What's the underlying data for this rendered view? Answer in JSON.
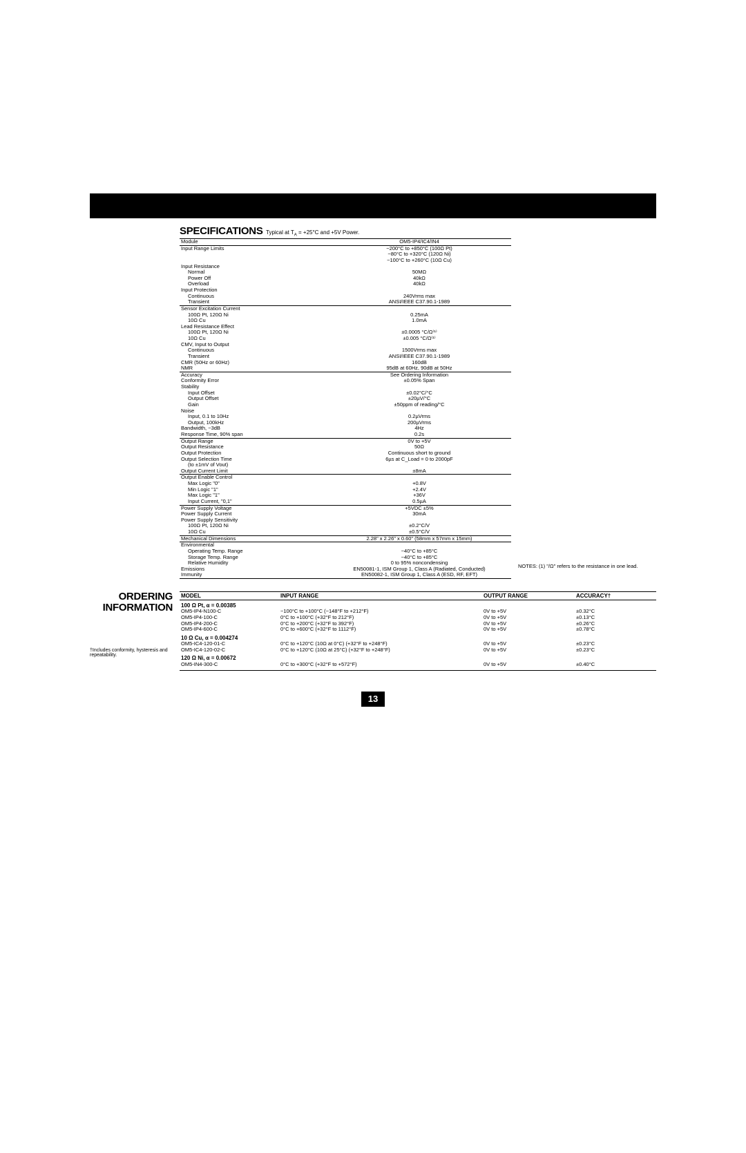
{
  "header": {
    "specifications_label": "SPECIFICATIONS",
    "conditions": "Typical at T",
    "conditions_sub": "A",
    "conditions_tail": " = +25°C and +5V Power."
  },
  "spec_table": {
    "col_module": "Module",
    "col_value": "OM5-IP4/IC4/IN4",
    "groups": [
      {
        "rows": [
          {
            "label": "Input Range Limits",
            "val": "−200°C to +850°C (100Ω Pt)"
          },
          {
            "label": "",
            "val": "−80°C to +320°C (120Ω Ni)"
          },
          {
            "label": "",
            "val": "−100°C to +260°C (10Ω Cu)"
          },
          {
            "label": "Input Resistance",
            "val": ""
          },
          {
            "ind": 1,
            "label": "Normal",
            "val": "50MΩ"
          },
          {
            "ind": 1,
            "label": "Power Off",
            "val": "40kΩ"
          },
          {
            "ind": 1,
            "label": "Overload",
            "val": "40kΩ"
          },
          {
            "label": "Input Protection",
            "val": ""
          },
          {
            "ind": 1,
            "label": "Continuous",
            "val": "240Vrms max"
          },
          {
            "ind": 1,
            "label": "Transient",
            "val": "ANSI/IEEE C37.90.1-1989"
          }
        ]
      },
      {
        "rows": [
          {
            "label": "Sensor Excitation Current",
            "val": ""
          },
          {
            "ind": 1,
            "label": "100Ω Pt, 120Ω Ni",
            "val": "0.25mA"
          },
          {
            "ind": 1,
            "label": "10Ω Cu",
            "val": "1.0mA"
          },
          {
            "label": "Lead Resistance Effect",
            "val": ""
          },
          {
            "ind": 1,
            "label": "100Ω Pt, 120Ω Ni",
            "val": "±0.0005 °C/Ω⁽¹⁾"
          },
          {
            "ind": 1,
            "label": "10Ω Cu",
            "val": "±0.005 °C/Ω⁽¹⁾"
          },
          {
            "label": "CMV, Input to Output",
            "val": ""
          },
          {
            "ind": 1,
            "label": "Continuous",
            "val": "1500Vrms max"
          },
          {
            "ind": 1,
            "label": "Transient",
            "val": "ANSI/IEEE C37.90.1-1989"
          },
          {
            "label": "CMR (50Hz or 60Hz)",
            "val": "160dB"
          },
          {
            "label": "NMR",
            "val": "95dB at 60Hz, 90dB at 50Hz"
          }
        ]
      },
      {
        "rows": [
          {
            "label": "Accuracy",
            "val": "See Ordering Information"
          },
          {
            "label": "Conformity Error",
            "val": "±0.05% Span"
          },
          {
            "label": "Stability",
            "val": ""
          },
          {
            "ind": 1,
            "label": "Input Offset",
            "val": "±0.02°C/°C"
          },
          {
            "ind": 1,
            "label": "Output Offset",
            "val": "±20µV/°C"
          },
          {
            "ind": 1,
            "label": "Gain",
            "val": "±50ppm of reading/°C"
          },
          {
            "label": "Noise",
            "val": ""
          },
          {
            "ind": 1,
            "label": "Input, 0.1 to 10Hz",
            "val": "0.2µVrms"
          },
          {
            "ind": 1,
            "label": "Output, 100kHz",
            "val": "200µVrms"
          },
          {
            "label": "Bandwidth, −3dB",
            "val": "4Hz"
          },
          {
            "label": "Response Time, 90% span",
            "val": "0.2s"
          }
        ]
      },
      {
        "rows": [
          {
            "label": "Output Range",
            "val": "0V to +5V"
          },
          {
            "label": "Output Resistance",
            "val": "50Ω"
          },
          {
            "label": "Output Protection",
            "val": "Continuous short to ground"
          },
          {
            "label": "Output Selection Time",
            "val": "6µs at C_Load = 0 to 2000pF"
          },
          {
            "ind": 1,
            "label": "(to ±1mV of Vout)",
            "val": ""
          },
          {
            "label": "Output Current Limit",
            "val": "±8mA"
          }
        ]
      },
      {
        "rows": [
          {
            "label": "Output Enable Control",
            "val": ""
          },
          {
            "ind": 1,
            "label": "Max Logic \"0\"",
            "val": "+0.8V"
          },
          {
            "ind": 1,
            "label": "Min Logic \"1\"",
            "val": "+2.4V"
          },
          {
            "ind": 1,
            "label": "Max Logic \"1\"",
            "val": "+36V"
          },
          {
            "ind": 1,
            "label": "Input Current, \"0,1\"",
            "val": "0.5µA"
          }
        ]
      },
      {
        "rows": [
          {
            "label": "Power Supply Voltage",
            "val": "+5VDC ±5%"
          },
          {
            "label": "Power Supply Current",
            "val": "30mA"
          },
          {
            "label": "Power Supply Sensitivity",
            "val": ""
          },
          {
            "ind": 1,
            "label": "100Ω Pt, 120Ω Ni",
            "val": "±0.2°C/V"
          },
          {
            "ind": 1,
            "label": "10Ω Cu",
            "val": "±0.5°C/V"
          }
        ]
      },
      {
        "rows": [
          {
            "label": "Mechanical Dimensions",
            "val": "2.28\" x 2.26\" x 0.60\" (58mm x 57mm x 15mm)"
          }
        ]
      },
      {
        "rows": [
          {
            "label": "Environmental",
            "val": ""
          },
          {
            "ind": 1,
            "label": "Operating Temp. Range",
            "val": "−40°C to +85°C"
          },
          {
            "ind": 1,
            "label": "Storage Temp. Range",
            "val": "−40°C to +85°C"
          },
          {
            "ind": 1,
            "label": "Relative Humidity",
            "val": "0 to 95% noncondensing"
          },
          {
            "label": "Emissions",
            "val": "EN50081-1, ISM Group 1, Class A (Radiated, Conducted)"
          },
          {
            "label": "Immunity",
            "val": "EN50082-1, ISM Group 1, Class A (ESD, RF, EFT)"
          }
        ]
      }
    ]
  },
  "notes_text": "NOTES:  (1) \"/Ω\" refers to the resistance in one lead.",
  "ordering": {
    "title_line1": "ORDERING",
    "title_line2": "INFORMATION",
    "footnote": "†Includes conformity, hysteresis and repeatability.",
    "columns": [
      "MODEL",
      "INPUT RANGE",
      "OUTPUT RANGE",
      "ACCURACY†"
    ],
    "groups": [
      {
        "heading": "100 Ω Pt, α = 0.00385",
        "rows": [
          {
            "model": "OM5-IP4-N100-C",
            "input": "−100°C to +100°C (−148°F to +212°F)",
            "output": "0V to +5V",
            "acc": "±0.32°C"
          },
          {
            "model": "OM5-IP4-100-C",
            "input": "0°C to +100°C (+32°F to 212°F)",
            "output": "0V to +5V",
            "acc": "±0.13°C"
          },
          {
            "model": "OM5-IP4-200-C",
            "input": "0°C to +200°C (+32°F to 392°F)",
            "output": "0V to +5V",
            "acc": "±0.26°C"
          },
          {
            "model": "OM5-IP4-600-C",
            "input": "0°C to +600°C (+32°F to 1112°F)",
            "output": "0V to +5V",
            "acc": "±0.78°C"
          }
        ]
      },
      {
        "heading": "10 Ω Cu, α = 0.004274",
        "rows": [
          {
            "model": "OM5-IC4-120-01-C",
            "input": "0°C to +120°C (10Ω at 0°C) (+32°F to +248°F)",
            "output": "0V to +5V",
            "acc": "±0.23°C"
          },
          {
            "model": "OM5-IC4-120-02-C",
            "input": "0°C to +120°C (10Ω at 25°C) (+32°F to +248°F)",
            "output": "0V to +5V",
            "acc": "±0.23°C"
          }
        ]
      },
      {
        "heading": "120 Ω Ni, α = 0.00672",
        "rows": [
          {
            "model": "OM5-IN4-300-C",
            "input": "0°C to +300°C (+32°F to +572°F)",
            "output": "0V to +5V",
            "acc": "±0.40°C"
          }
        ]
      }
    ]
  },
  "page_number": "13"
}
